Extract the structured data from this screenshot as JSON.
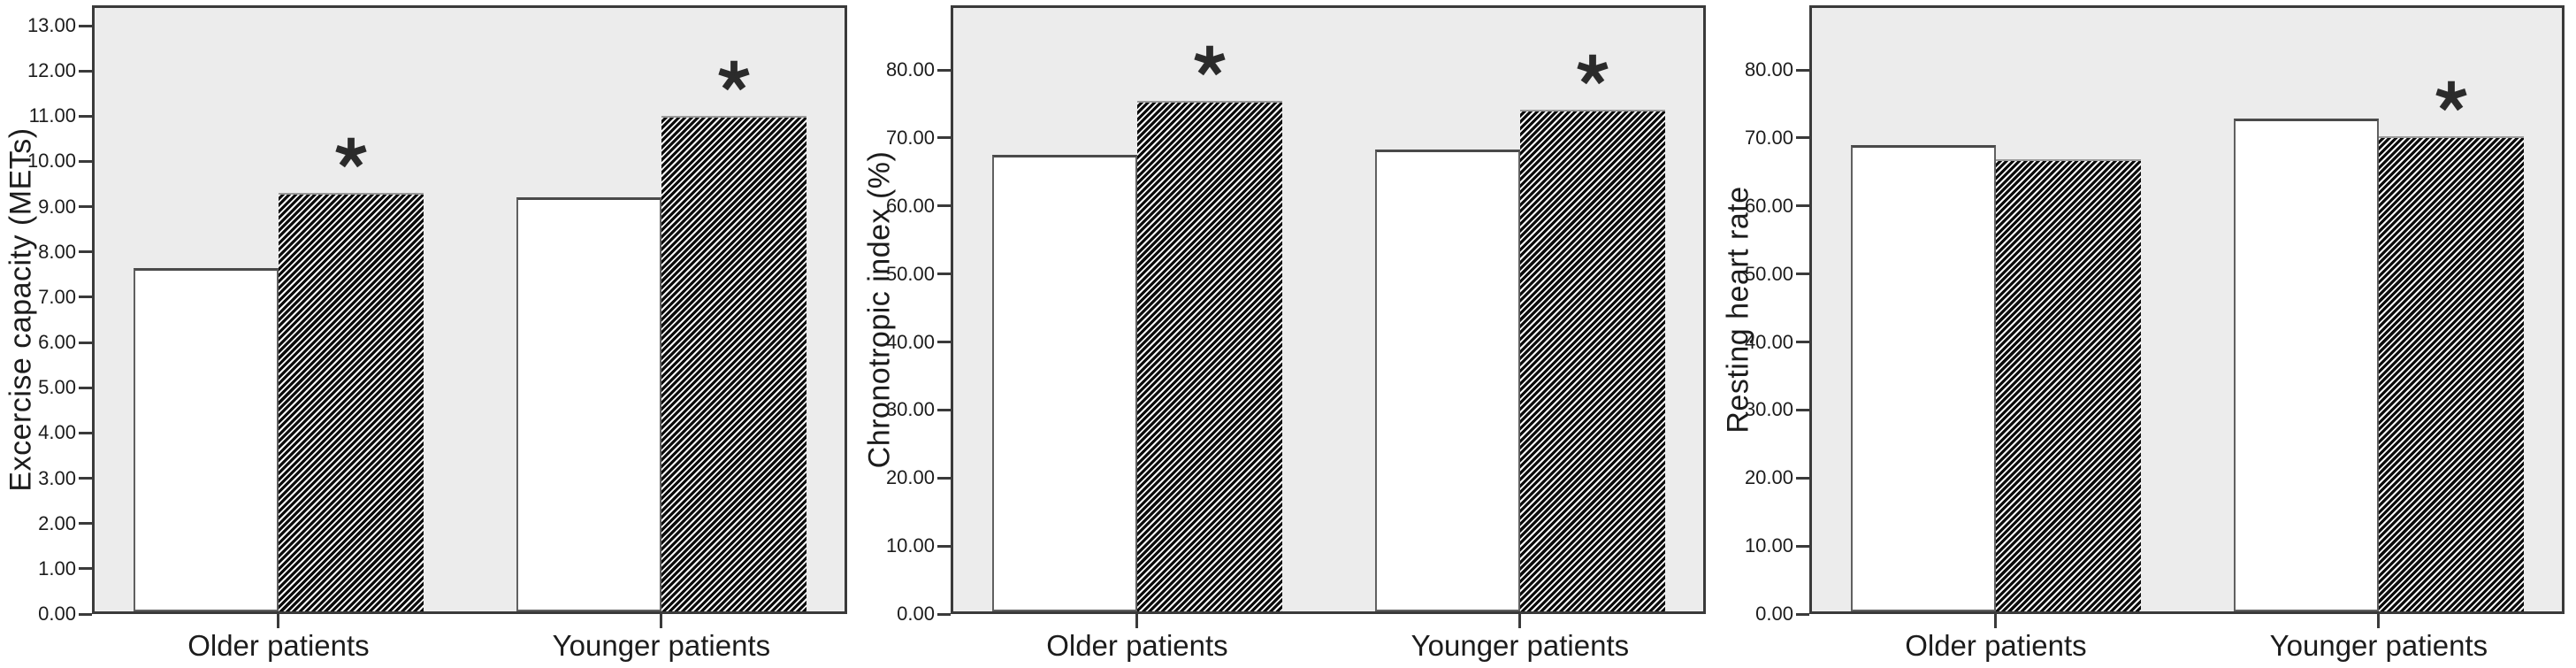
{
  "figure": {
    "description": "Three clustered bar charts comparing Older patients and Younger patients; plain white bars versus black diagonally hatched bars; asterisks mark significance",
    "significance_symbol": "*",
    "colors": {
      "page_background": "#ffffff",
      "plot_background": "#ececec",
      "plot_border": "#3a3a3a",
      "axis_text": "#1c1c1c",
      "white_bar_fill": "#ffffff",
      "white_bar_border": "#4f4f4f",
      "hatch_black": "#0b0b0b",
      "hatch_white": "#fafafa",
      "asterisk": "#2b2b2b"
    }
  },
  "chart_data": [
    {
      "type": "bar",
      "title": "",
      "xlabel": "",
      "ylabel": "Excercise capacity (METs)",
      "categories": [
        "Older patients",
        "Younger patients"
      ],
      "series": [
        {
          "name": "plain bars",
          "pattern": "solid-white",
          "values": [
            7.65,
            9.2
          ],
          "significance": [
            false,
            false
          ]
        },
        {
          "name": "hatched bars",
          "pattern": "black-diagonal-hatch",
          "values": [
            9.3,
            11.0
          ],
          "significance": [
            true,
            true
          ]
        }
      ],
      "ylim": [
        0,
        13.45
      ],
      "grid": false,
      "legend": "none",
      "yticks": [
        {
          "value": 0,
          "label": "0.00"
        },
        {
          "value": 1,
          "label": "1.00"
        },
        {
          "value": 2,
          "label": "2.00"
        },
        {
          "value": 3,
          "label": "3.00"
        },
        {
          "value": 4,
          "label": "4.00"
        },
        {
          "value": 5,
          "label": "5.00"
        },
        {
          "value": 6,
          "label": "6.00"
        },
        {
          "value": 7,
          "label": "7.00"
        },
        {
          "value": 8,
          "label": "8.00"
        },
        {
          "value": 9,
          "label": "9.00"
        },
        {
          "value": 10,
          "label": "10.00"
        },
        {
          "value": 11,
          "label": "11.00"
        },
        {
          "value": 12,
          "label": "12.00"
        },
        {
          "value": 13,
          "label": "13.00"
        }
      ]
    },
    {
      "type": "bar",
      "title": "",
      "xlabel": "",
      "ylabel": "Chronotropic index (%)",
      "categories": [
        "Older patients",
        "Younger patients"
      ],
      "series": [
        {
          "name": "plain bars",
          "pattern": "solid-white",
          "values": [
            67.5,
            68.3
          ],
          "significance": [
            false,
            false
          ]
        },
        {
          "name": "hatched bars",
          "pattern": "black-diagonal-hatch",
          "values": [
            75.5,
            74.1
          ],
          "significance": [
            true,
            true
          ]
        }
      ],
      "ylim": [
        0,
        89.5
      ],
      "grid": false,
      "legend": "none",
      "yticks": [
        {
          "value": 0,
          "label": "0.00"
        },
        {
          "value": 10,
          "label": "10.00"
        },
        {
          "value": 20,
          "label": "20.00"
        },
        {
          "value": 30,
          "label": "30.00"
        },
        {
          "value": 40,
          "label": "40.00"
        },
        {
          "value": 50,
          "label": "50.00"
        },
        {
          "value": 60,
          "label": "60.00"
        },
        {
          "value": 70,
          "label": "70.00"
        },
        {
          "value": 80,
          "label": "80.00"
        }
      ]
    },
    {
      "type": "bar",
      "title": "",
      "xlabel": "",
      "ylabel": "Resting heart rate",
      "categories": [
        "Older patients",
        "Younger patients"
      ],
      "series": [
        {
          "name": "plain bars",
          "pattern": "solid-white",
          "values": [
            69.0,
            72.8
          ],
          "significance": [
            false,
            false
          ]
        },
        {
          "name": "hatched bars",
          "pattern": "black-diagonal-hatch",
          "values": [
            66.8,
            70.3
          ],
          "significance": [
            false,
            true
          ]
        }
      ],
      "ylim": [
        0,
        89.5
      ],
      "grid": false,
      "legend": "none",
      "yticks": [
        {
          "value": 0,
          "label": "0.00"
        },
        {
          "value": 10,
          "label": "10.00"
        },
        {
          "value": 20,
          "label": "20.00"
        },
        {
          "value": 30,
          "label": "30.00"
        },
        {
          "value": 40,
          "label": "40.00"
        },
        {
          "value": 50,
          "label": "50.00"
        },
        {
          "value": 60,
          "label": "60.00"
        },
        {
          "value": 70,
          "label": "70.00"
        },
        {
          "value": 80,
          "label": "80.00"
        }
      ]
    }
  ]
}
